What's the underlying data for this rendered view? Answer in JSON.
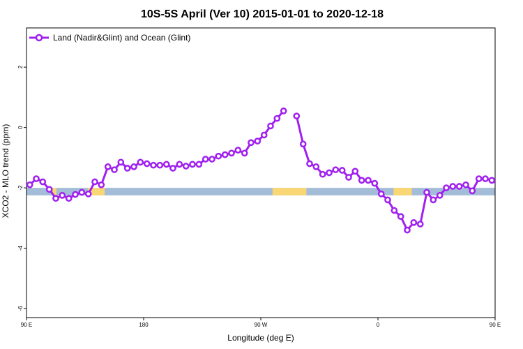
{
  "chart_data": {
    "type": "line",
    "title": "10S-5S April (Ver 10)   2015-01-01 to 2020-12-18",
    "xlabel": "Longitude (deg E)",
    "ylabel": "XCO2 - MLO trend (ppm)",
    "xlim": [
      90,
      450
    ],
    "ylim": [
      -6.3,
      3.3
    ],
    "x_ticks": [
      {
        "value": 90,
        "label": "90 E"
      },
      {
        "value": 180,
        "label": "180"
      },
      {
        "value": 270,
        "label": "90 W"
      },
      {
        "value": 360,
        "label": "0"
      },
      {
        "value": 450,
        "label": "90 E"
      },
      {
        "value": 540,
        "label": "180"
      }
    ],
    "y_ticks": [
      {
        "value": 2,
        "label": "2"
      },
      {
        "value": 0,
        "label": "0"
      },
      {
        "value": -2,
        "label": "-2"
      },
      {
        "value": -4,
        "label": "-4"
      },
      {
        "value": -6,
        "label": "-6"
      }
    ],
    "legend": {
      "position": "top-left",
      "entries": [
        "Land (Nadir&Glint) and Ocean (Glint)"
      ]
    },
    "series": [
      {
        "name": "Land (Nadir&Glint) and Ocean (Glint)",
        "color": "#a020f0",
        "points": [
          [
            92.5,
            -1.9
          ],
          [
            97.5,
            -1.7
          ],
          [
            102.5,
            -1.8
          ],
          [
            107.5,
            -2.05
          ],
          [
            112.5,
            -2.35
          ],
          [
            117.5,
            -2.25
          ],
          [
            122.5,
            -2.35
          ],
          [
            127.5,
            -2.22
          ],
          [
            132.5,
            -2.15
          ],
          [
            137.5,
            -2.2
          ],
          [
            142.5,
            -1.8
          ],
          [
            147.5,
            -1.9
          ],
          [
            152.5,
            -1.3
          ],
          [
            157.5,
            -1.4
          ],
          [
            162.5,
            -1.15
          ],
          [
            167.5,
            -1.35
          ],
          [
            172.5,
            -1.3
          ],
          [
            177.5,
            -1.15
          ],
          [
            182.5,
            -1.2
          ],
          [
            187.5,
            -1.25
          ],
          [
            192.5,
            -1.25
          ],
          [
            197.5,
            -1.22
          ],
          [
            202.5,
            -1.35
          ],
          [
            207.5,
            -1.22
          ],
          [
            212.5,
            -1.28
          ],
          [
            217.5,
            -1.22
          ],
          [
            222.5,
            -1.22
          ],
          [
            227.5,
            -1.05
          ],
          [
            232.5,
            -1.05
          ],
          [
            237.5,
            -0.95
          ],
          [
            242.5,
            -0.9
          ],
          [
            247.5,
            -0.85
          ],
          [
            252.5,
            -0.75
          ],
          [
            257.5,
            -0.85
          ],
          [
            262.5,
            -0.5
          ],
          [
            267.5,
            -0.45
          ],
          [
            272.5,
            -0.25
          ],
          [
            277.5,
            0.05
          ],
          [
            282.5,
            0.3
          ],
          [
            287.5,
            0.55
          ],
          null,
          [
            297.5,
            0.38
          ],
          [
            302.5,
            -0.55
          ],
          [
            307.5,
            -1.2
          ],
          [
            312.5,
            -1.3
          ],
          [
            317.5,
            -1.55
          ],
          [
            322.5,
            -1.5
          ],
          [
            327.5,
            -1.4
          ],
          [
            332.5,
            -1.42
          ],
          [
            337.5,
            -1.65
          ],
          [
            342.5,
            -1.45
          ],
          [
            347.5,
            -1.75
          ],
          [
            352.5,
            -1.75
          ],
          [
            357.5,
            -1.85
          ],
          [
            362.5,
            -2.2
          ],
          [
            367.5,
            -2.4
          ],
          [
            372.5,
            -2.75
          ],
          [
            377.5,
            -2.95
          ],
          [
            382.5,
            -3.4
          ],
          [
            387.5,
            -3.15
          ],
          [
            392.5,
            -3.2
          ],
          [
            397.5,
            -2.15
          ],
          [
            402.5,
            -2.4
          ],
          [
            407.5,
            -2.25
          ],
          [
            412.5,
            -2.0
          ],
          [
            417.5,
            -1.95
          ],
          [
            422.5,
            -1.95
          ],
          [
            427.5,
            -1.9
          ],
          [
            432.5,
            -2.1
          ],
          [
            437.5,
            -1.7
          ],
          [
            442.5,
            -1.7
          ],
          [
            447.5,
            -1.75
          ],
          [
            452.5,
            -1.9
          ],
          [
            457.5,
            -1.7
          ],
          [
            462.5,
            -1.8
          ],
          [
            467.5,
            -2.05
          ],
          [
            472.5,
            -2.35
          ],
          [
            477.5,
            -2.25
          ],
          [
            482.5,
            -2.35
          ],
          [
            487.5,
            -2.22
          ],
          [
            492.5,
            -2.15
          ],
          [
            497.5,
            -2.2
          ],
          [
            502.5,
            -1.8
          ],
          [
            507.5,
            -1.9
          ],
          [
            512.5,
            -1.25
          ],
          [
            517.5,
            -1.4
          ],
          [
            522.5,
            -1.15
          ],
          [
            527.5,
            -1.35
          ],
          [
            532.5,
            -1.3
          ],
          [
            537.5,
            -1.15
          ]
        ]
      }
    ],
    "surface_band": {
      "y_range": [
        -2.25,
        -2.0
      ],
      "ocean_color": "#a3bcd8",
      "land_color": "#f9d775",
      "land_segments": [
        [
          110,
          113
        ],
        [
          137,
          150
        ],
        [
          279,
          305
        ],
        [
          372,
          386
        ],
        [
          478,
          482
        ],
        [
          503,
          514
        ]
      ]
    }
  }
}
